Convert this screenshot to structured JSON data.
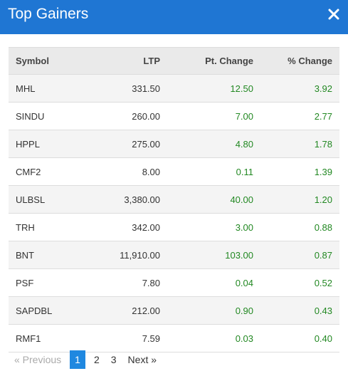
{
  "header": {
    "title": "Top Gainers",
    "close_label": "✕"
  },
  "table": {
    "columns": [
      "Symbol",
      "LTP",
      "Pt. Change",
      "% Change"
    ],
    "rows": [
      [
        "MHL",
        "331.50",
        "12.50",
        "3.92"
      ],
      [
        "SINDU",
        "260.00",
        "7.00",
        "2.77"
      ],
      [
        "HPPL",
        "275.00",
        "4.80",
        "1.78"
      ],
      [
        "CMF2",
        "8.00",
        "0.11",
        "1.39"
      ],
      [
        "ULBSL",
        "3,380.00",
        "40.00",
        "1.20"
      ],
      [
        "TRH",
        "342.00",
        "3.00",
        "0.88"
      ],
      [
        "BNT",
        "11,910.00",
        "103.00",
        "0.87"
      ],
      [
        "PSF",
        "7.80",
        "0.04",
        "0.52"
      ],
      [
        "SAPDBL",
        "212.00",
        "0.90",
        "0.43"
      ],
      [
        "RMF1",
        "7.59",
        "0.03",
        "0.40"
      ]
    ]
  },
  "pagination": {
    "prev": "« Previous",
    "pages": [
      "1",
      "2",
      "3"
    ],
    "active_page": "1",
    "next": "Next »"
  },
  "colors": {
    "header_bg": "#1f76d3",
    "positive": "#228822",
    "active_page_bg": "#1f88e0"
  }
}
